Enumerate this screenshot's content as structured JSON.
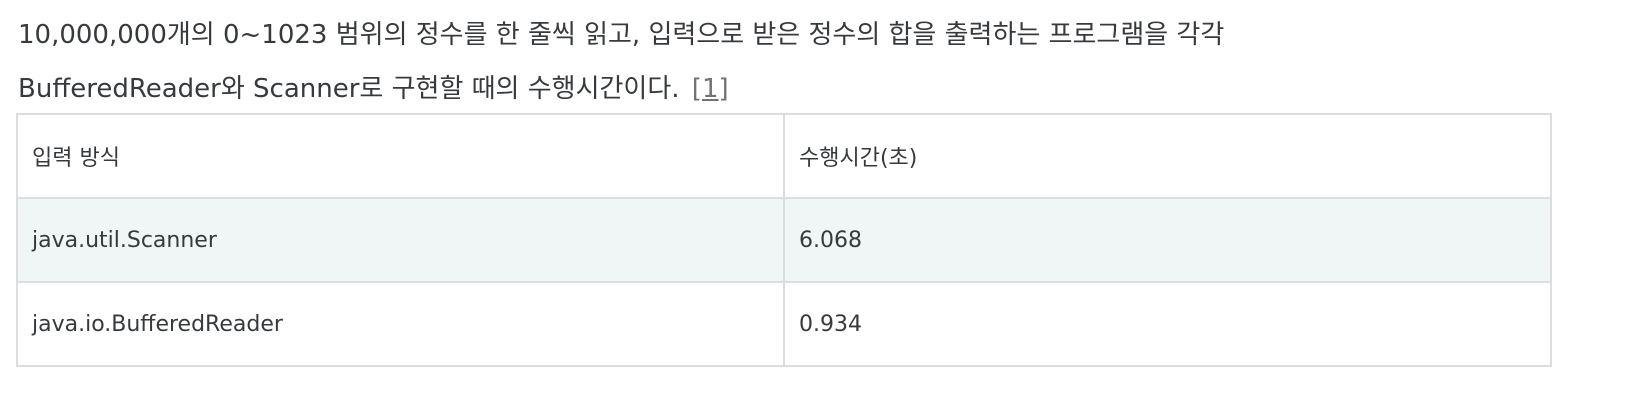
{
  "paragraph": {
    "line1": "10,000,000개의 0~1023 범위의 정수를 한 줄씩 읽고, 입력으로 받은 정수의 합을 출력하는 프로그램을 각각",
    "line2": "BufferedReader와 Scanner로 구현할 때의 수행시간이다.",
    "footnote": "[1]"
  },
  "table": {
    "headers": [
      "입력 방식",
      "수행시간(초)"
    ],
    "rows": [
      [
        "java.util.Scanner",
        "6.068"
      ],
      [
        "java.io.BufferedReader",
        "0.934"
      ]
    ]
  }
}
